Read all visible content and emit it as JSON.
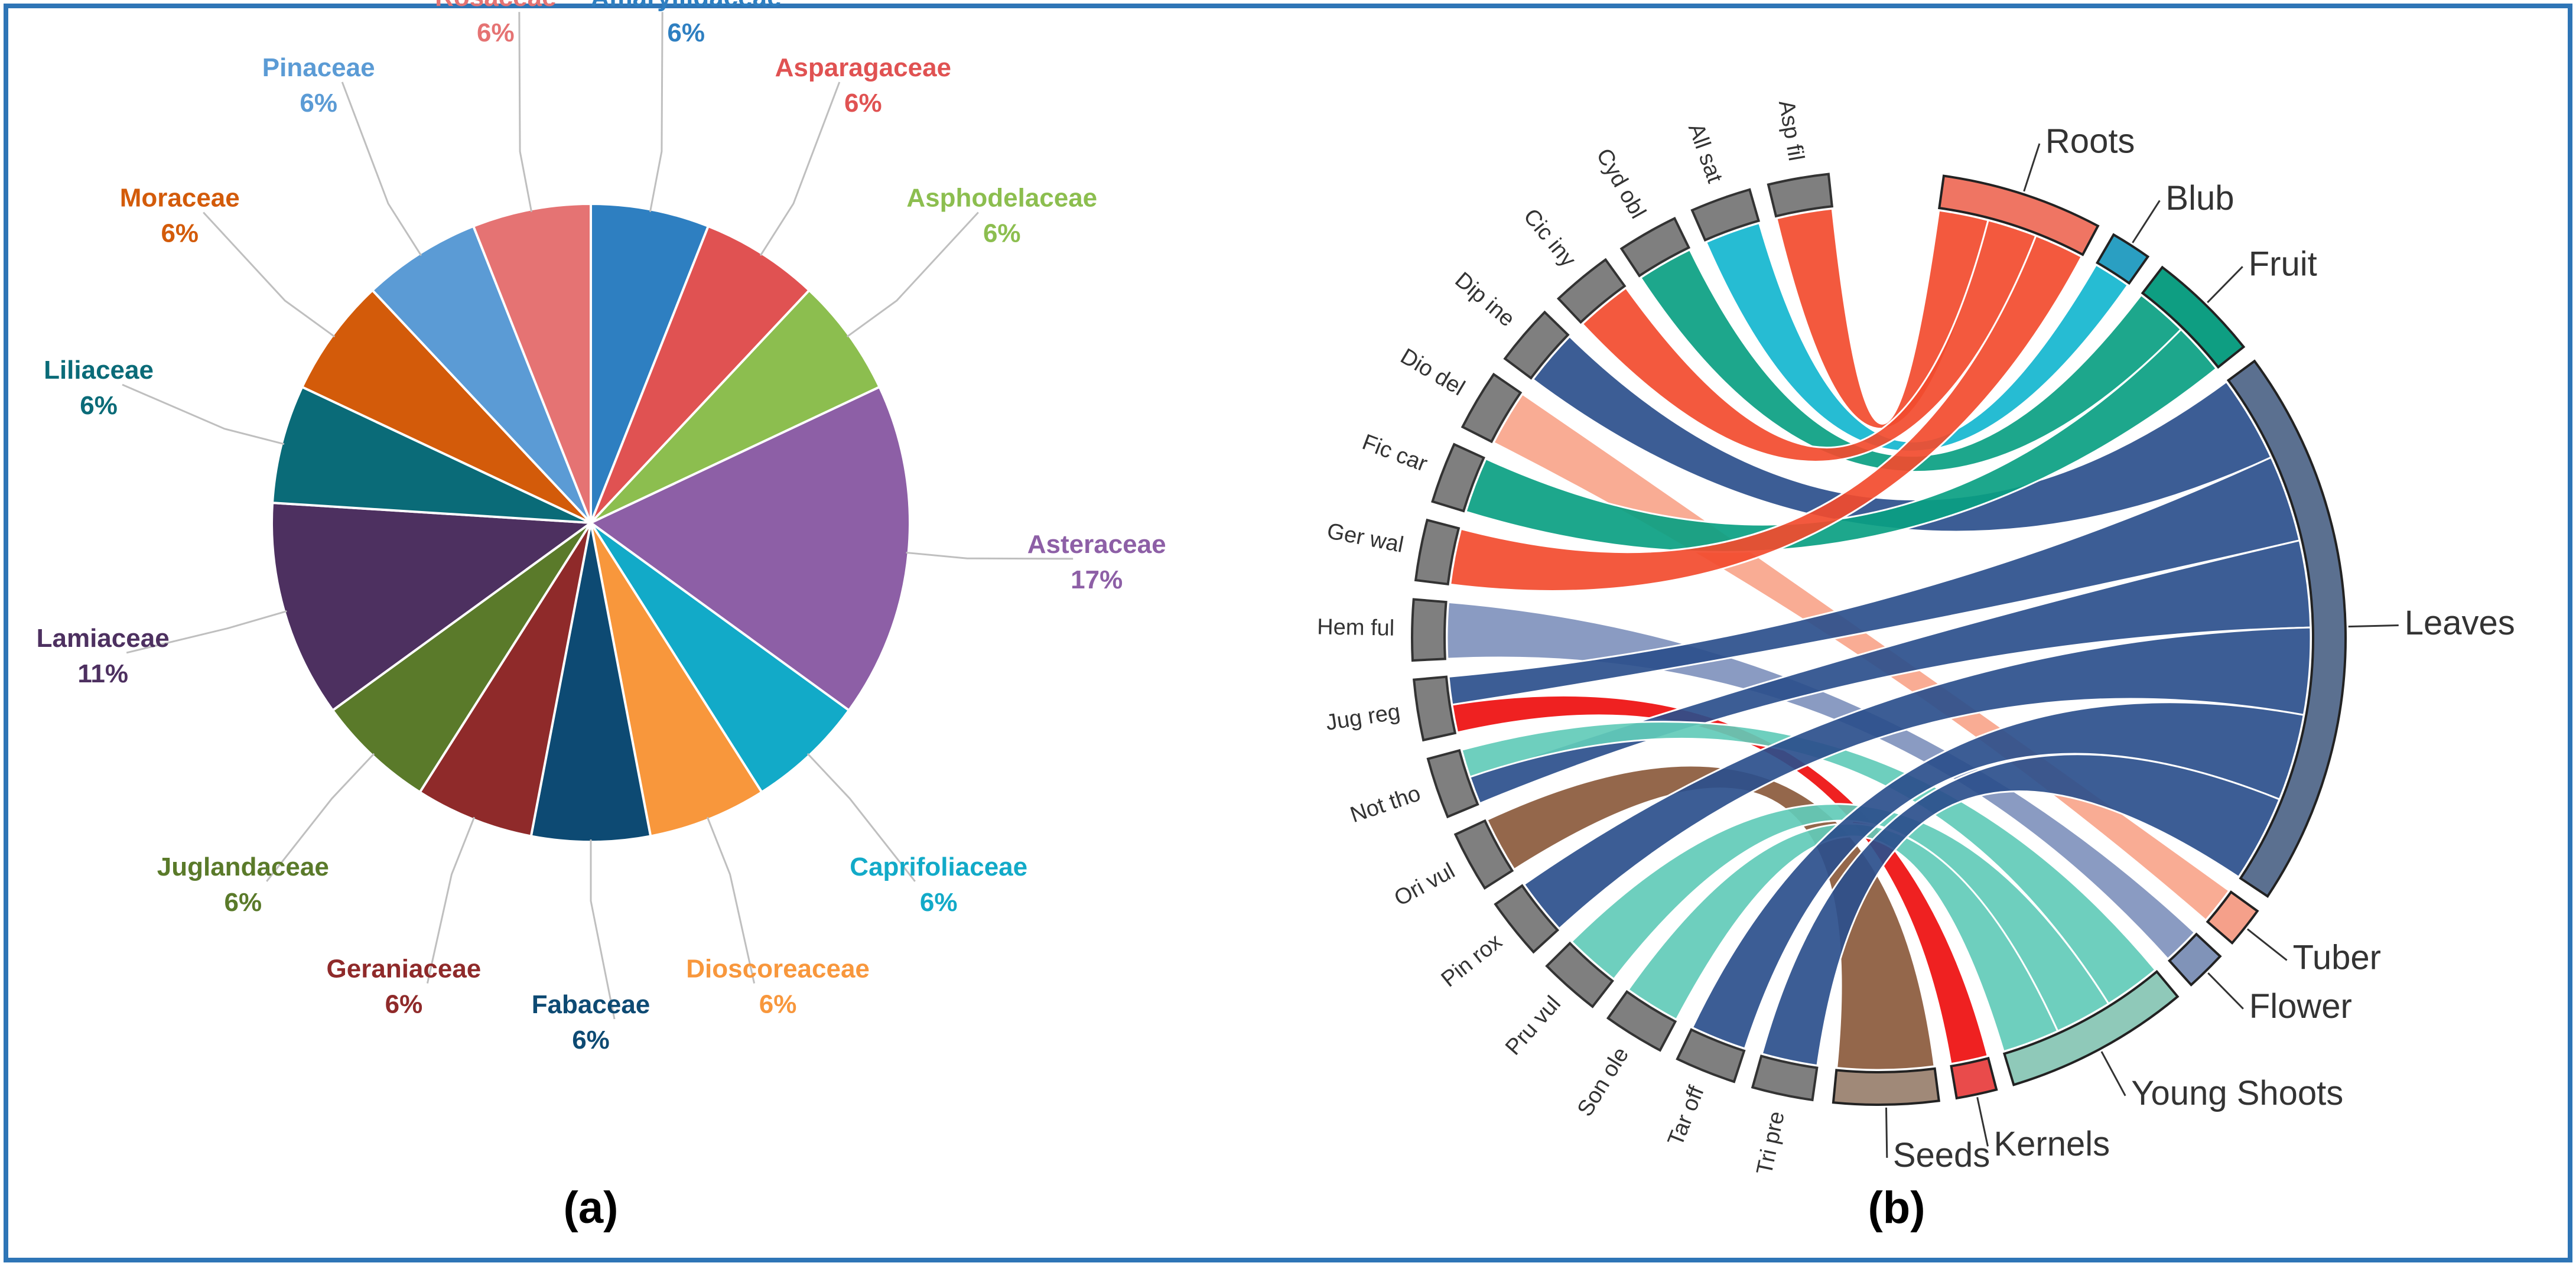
{
  "figure": {
    "panel_a_label": "(a)",
    "panel_b_label": "(b)",
    "border_color": "#2e75b6"
  },
  "chart_data": [
    {
      "type": "pie",
      "categories": [
        "Amaryllidaceae",
        "Asparagaceae",
        "Asphodelaceae",
        "Asteraceae",
        "Caprifoliaceae",
        "Dioscoreaceae",
        "Fabaceae",
        "Geraniaceae",
        "Juglandaceae",
        "Lamiaceae",
        "Liliaceae",
        "Moraceae",
        "Pinaceae",
        "Rosaceae"
      ],
      "values": [
        6,
        6,
        6,
        17,
        6,
        6,
        6,
        6,
        6,
        11,
        6,
        6,
        6,
        6
      ],
      "value_labels": [
        "6%",
        "6%",
        "6%",
        "17%",
        "6%",
        "6%",
        "6%",
        "6%",
        "6%",
        "11%",
        "6%",
        "6%",
        "6%",
        "6%"
      ],
      "colors": [
        "#2e7fc1",
        "#e05252",
        "#8cbe4f",
        "#8d5fa6",
        "#12aac8",
        "#f8973c",
        "#0d4a73",
        "#8f2a2a",
        "#5a7a2a",
        "#4d3060",
        "#0a6b78",
        "#d35b0a",
        "#5b9bd5",
        "#e57373"
      ],
      "label_colors": [
        "#2e7fc1",
        "#e05252",
        "#8cbe4f",
        "#8d5fa6",
        "#12aac8",
        "#f8973c",
        "#0d4a73",
        "#8f2a2a",
        "#5a7a2a",
        "#4d3060",
        "#0a6b78",
        "#d35b0a",
        "#5b9bd5",
        "#e57373"
      ]
    },
    {
      "type": "chord",
      "species": [
        "Asp fil",
        "All sat",
        "Cyd obl",
        "Cic iny",
        "Dip ine",
        "Dio del",
        "Fic car",
        "Ger wal",
        "Hem ful",
        "Jug reg",
        "Not tho",
        "Ori vul",
        "Pin rox",
        "Pru vul",
        "Son ole",
        "Tar off",
        "Tri pre"
      ],
      "parts": [
        "Roots",
        "Blub",
        "Fruit",
        "Leaves",
        "Tuber",
        "Flower",
        "Young Shoots",
        "Kernels",
        "Seeds"
      ],
      "part_colors": [
        "#ef7563",
        "#2a9fc2",
        "#0e9e82",
        "#5b7090",
        "#f5a08a",
        "#8093b8",
        "#8fc9b9",
        "#e94b4b",
        "#a08978"
      ],
      "links": [
        {
          "species": "Asp fil",
          "part": "Roots",
          "color": "#f24b2e"
        },
        {
          "species": "All sat",
          "part": "Blub",
          "color": "#13b6cf"
        },
        {
          "species": "Cyd obl",
          "part": "Fruit",
          "color": "#0aa082"
        },
        {
          "species": "Cic iny",
          "part": "Roots",
          "color": "#f24b2e"
        },
        {
          "species": "Dip ine",
          "part": "Leaves",
          "color": "#2b4f8c"
        },
        {
          "species": "Dio del",
          "part": "Tuber",
          "color": "#f8a58b"
        },
        {
          "species": "Fic car",
          "part": "Fruit",
          "color": "#0aa082"
        },
        {
          "species": "Ger wal",
          "part": "Roots",
          "color": "#f24b2e"
        },
        {
          "species": "Hem ful",
          "part": "Flower",
          "color": "#8093bd"
        },
        {
          "species": "Jug reg",
          "part": "Kernels",
          "color": "#ee0e0e"
        },
        {
          "species": "Jug reg",
          "part": "Leaves",
          "color": "#2b4f8c"
        },
        {
          "species": "Not tho",
          "part": "Leaves",
          "color": "#2b4f8c"
        },
        {
          "species": "Not tho",
          "part": "Young Shoots",
          "color": "#62cbb8"
        },
        {
          "species": "Ori vul",
          "part": "Seeds",
          "color": "#8b5a3c"
        },
        {
          "species": "Pin rox",
          "part": "Leaves",
          "color": "#2b4f8c"
        },
        {
          "species": "Pru vul",
          "part": "Young Shoots",
          "color": "#62cbb8"
        },
        {
          "species": "Son ole",
          "part": "Young Shoots",
          "color": "#62cbb8"
        },
        {
          "species": "Tar off",
          "part": "Leaves",
          "color": "#2b4f8c"
        },
        {
          "species": "Tri pre",
          "part": "Leaves",
          "color": "#2b4f8c"
        }
      ]
    }
  ]
}
